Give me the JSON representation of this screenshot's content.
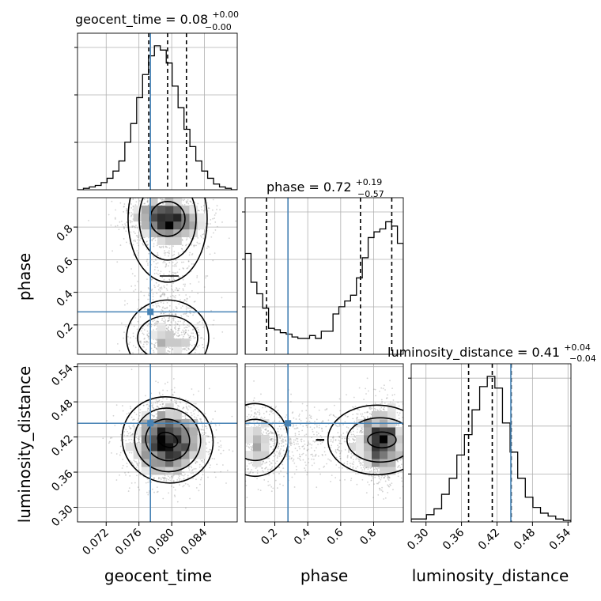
{
  "chart_data": {
    "type": "corner",
    "parameters": [
      "geocent_time",
      "phase",
      "luminosity_distance"
    ],
    "axis_labels": [
      "geocent_time",
      "phase",
      "luminosity_distance"
    ],
    "ranges": {
      "geocent_time": [
        0.0685,
        0.088
      ],
      "phase": [
        0.02,
        0.98
      ],
      "luminosity_distance": [
        0.275,
        0.545
      ]
    },
    "ticks": {
      "geocent_time": [
        "0.072",
        "0.076",
        "0.080",
        "0.084"
      ],
      "phase_x": [
        "0.2",
        "0.4",
        "0.6",
        "0.8"
      ],
      "phase_y": [
        "0.2",
        "0.4",
        "0.6",
        "0.8"
      ],
      "luminosity_distance": [
        "0.30",
        "0.36",
        "0.42",
        "0.48",
        "0.54"
      ]
    },
    "titles": [
      {
        "name": "geocent_time",
        "median": "0.08",
        "plus": "+0.00",
        "minus": "−0.00"
      },
      {
        "name": "phase",
        "median": "0.72",
        "plus": "+0.19",
        "minus": "−0.57"
      },
      {
        "name": "luminosity_distance",
        "median": "0.41",
        "plus": "+0.04",
        "minus": "−0.04"
      }
    ],
    "truths": {
      "geocent_time": 0.0774,
      "phase": 0.28,
      "luminosity_distance": 0.4434
    },
    "quantiles": {
      "geocent_time": [
        0.0772,
        0.0795,
        0.0818
      ],
      "phase": [
        0.15,
        0.72,
        0.91
      ],
      "luminosity_distance": [
        0.372,
        0.412,
        0.444
      ]
    },
    "histograms": {
      "geocent_time": [
        0.0,
        0.01,
        0.02,
        0.03,
        0.05,
        0.08,
        0.13,
        0.2,
        0.33,
        0.46,
        0.64,
        0.8,
        0.93,
        1.0,
        0.97,
        0.88,
        0.72,
        0.57,
        0.42,
        0.3,
        0.2,
        0.13,
        0.08,
        0.04,
        0.02,
        0.01,
        0.0
      ],
      "phase": [
        0.7,
        0.5,
        0.42,
        0.32,
        0.18,
        0.17,
        0.15,
        0.14,
        0.12,
        0.11,
        0.11,
        0.13,
        0.11,
        0.16,
        0.16,
        0.28,
        0.33,
        0.37,
        0.41,
        0.53,
        0.67,
        0.81,
        0.85,
        0.87,
        0.92,
        0.89,
        0.77
      ],
      "luminosity_distance": [
        0.02,
        0.02,
        0.05,
        0.09,
        0.19,
        0.3,
        0.46,
        0.6,
        0.77,
        0.93,
        1.0,
        0.92,
        0.68,
        0.48,
        0.3,
        0.17,
        0.1,
        0.06,
        0.04,
        0.02,
        0.01
      ]
    },
    "grid": true,
    "colors": {
      "truth": "#4682b4",
      "lines": "#000000",
      "grid": "#b0b0b0",
      "points": "#808080"
    }
  }
}
